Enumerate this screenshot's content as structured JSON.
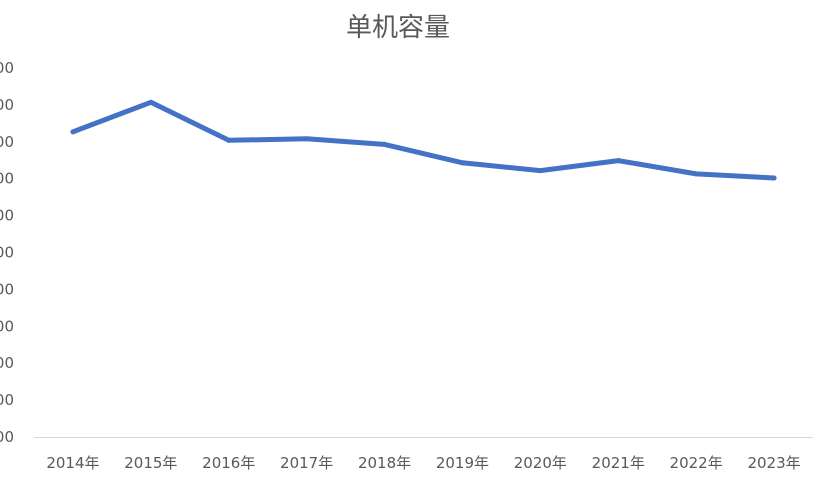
{
  "chart_data": {
    "type": "line",
    "title": "单机容量",
    "categories": [
      "2014年",
      "2015年",
      "2016年",
      "2017年",
      "2018年",
      "2019年",
      "2020年",
      "2021年",
      "2022年",
      "2023年"
    ],
    "y_tick_labels": [
      "00",
      "00",
      "00",
      "00",
      "00",
      "00",
      "00",
      "00",
      "00",
      "00",
      "00"
    ],
    "ylim": [
      0,
      10
    ],
    "grid": false,
    "legend": "none",
    "series": [
      {
        "values": [
          8.27,
          9.07,
          8.04,
          8.08,
          7.93,
          7.43,
          7.22,
          7.49,
          7.13,
          7.02
        ],
        "color": "#4472c4"
      }
    ],
    "xlabel": "",
    "ylabel": ""
  }
}
